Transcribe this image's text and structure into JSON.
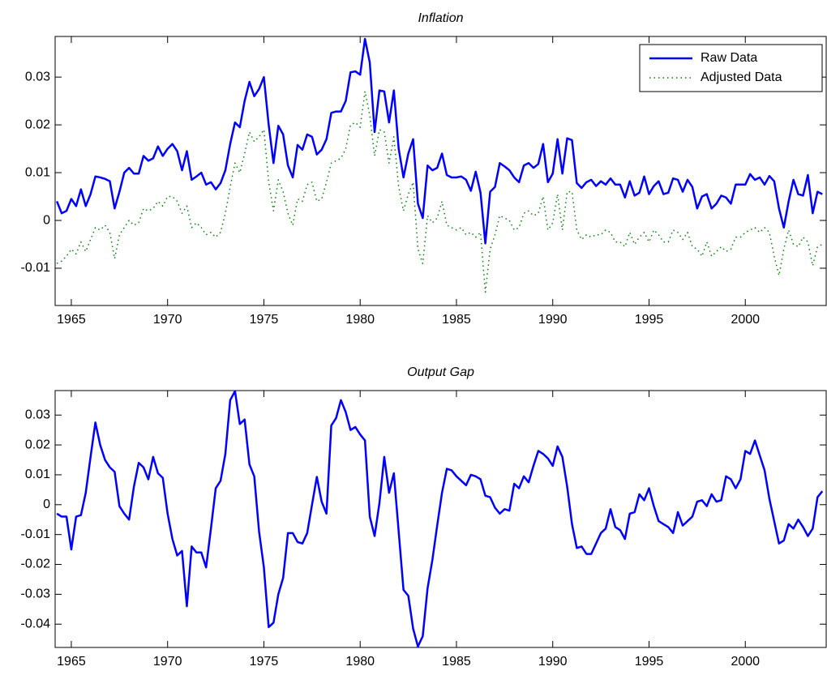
{
  "chart_data": [
    {
      "type": "line",
      "title": "Inflation",
      "legend": "upper right",
      "xlim": [
        1964.16,
        2004.2
      ],
      "xticks": [
        1965,
        1970,
        1975,
        1980,
        1985,
        1990,
        1995,
        2000
      ],
      "ylim": [
        -0.0178,
        0.0385
      ],
      "yticks": [
        -0.01,
        0,
        0.01,
        0.02,
        0.03
      ],
      "x": [
        1964.25,
        1964.5,
        1964.75,
        1965,
        1965.25,
        1965.5,
        1965.75,
        1966,
        1966.25,
        1966.5,
        1966.75,
        1967,
        1967.25,
        1967.5,
        1967.75,
        1968,
        1968.25,
        1968.5,
        1968.75,
        1969,
        1969.25,
        1969.5,
        1969.75,
        1970,
        1970.25,
        1970.5,
        1970.75,
        1971,
        1971.25,
        1971.5,
        1971.75,
        1972,
        1972.25,
        1972.5,
        1972.75,
        1973,
        1973.25,
        1973.5,
        1973.75,
        1974,
        1974.25,
        1974.5,
        1974.75,
        1975,
        1975.25,
        1975.5,
        1975.75,
        1976,
        1976.25,
        1976.5,
        1976.75,
        1977,
        1977.25,
        1977.5,
        1977.75,
        1978,
        1978.25,
        1978.5,
        1978.75,
        1979,
        1979.25,
        1979.5,
        1979.75,
        1980,
        1980.25,
        1980.5,
        1980.75,
        1981,
        1981.25,
        1981.5,
        1981.75,
        1982,
        1982.25,
        1982.5,
        1982.75,
        1983,
        1983.25,
        1983.5,
        1983.75,
        1984,
        1984.25,
        1984.5,
        1984.75,
        1985,
        1985.25,
        1985.5,
        1985.75,
        1986,
        1986.25,
        1986.5,
        1986.75,
        1987,
        1987.25,
        1987.5,
        1987.75,
        1988,
        1988.25,
        1988.5,
        1988.75,
        1989,
        1989.25,
        1989.5,
        1989.75,
        1990,
        1990.25,
        1990.5,
        1990.75,
        1991,
        1991.25,
        1991.5,
        1991.75,
        1992,
        1992.25,
        1992.5,
        1992.75,
        1993,
        1993.25,
        1993.5,
        1993.75,
        1994,
        1994.25,
        1994.5,
        1994.75,
        1995,
        1995.25,
        1995.5,
        1995.75,
        1996,
        1996.25,
        1996.5,
        1996.75,
        1997,
        1997.25,
        1997.5,
        1997.75,
        1998,
        1998.25,
        1998.5,
        1998.75,
        1999,
        1999.25,
        1999.5,
        1999.75,
        2000,
        2000.25,
        2000.5,
        2000.75,
        2001,
        2001.25,
        2001.5,
        2001.75,
        2002,
        2002.25,
        2002.5,
        2002.75,
        2003,
        2003.25,
        2003.5,
        2003.75,
        2004
      ],
      "series": [
        {
          "name": "Raw Data",
          "color": "#0000ff",
          "style": "solid",
          "values": [
            0.004,
            0.0015,
            0.002,
            0.0045,
            0.003,
            0.0065,
            0.003,
            0.0055,
            0.0092,
            0.009,
            0.0087,
            0.0082,
            0.0025,
            0.006,
            0.01,
            0.011,
            0.0098,
            0.0098,
            0.0135,
            0.0125,
            0.013,
            0.0155,
            0.0135,
            0.015,
            0.016,
            0.0145,
            0.0105,
            0.0145,
            0.0085,
            0.0092,
            0.01,
            0.0075,
            0.008,
            0.0065,
            0.0078,
            0.0105,
            0.016,
            0.0205,
            0.0195,
            0.025,
            0.029,
            0.026,
            0.0275,
            0.03,
            0.02,
            0.012,
            0.0198,
            0.018,
            0.0115,
            0.009,
            0.0158,
            0.0148,
            0.018,
            0.0175,
            0.0138,
            0.0148,
            0.017,
            0.0225,
            0.0228,
            0.0228,
            0.025,
            0.031,
            0.0312,
            0.0305,
            0.038,
            0.033,
            0.0185,
            0.0272,
            0.027,
            0.0205,
            0.0272,
            0.015,
            0.009,
            0.014,
            0.017,
            0.0035,
            0.0005,
            0.0115,
            0.0105,
            0.011,
            0.014,
            0.0095,
            0.009,
            0.009,
            0.0092,
            0.0085,
            0.0062,
            0.0102,
            0.0058,
            -0.0048,
            0.006,
            0.007,
            0.012,
            0.0113,
            0.0105,
            0.009,
            0.008,
            0.0115,
            0.012,
            0.011,
            0.0118,
            0.016,
            0.008,
            0.0098,
            0.017,
            0.0098,
            0.0172,
            0.0168,
            0.0078,
            0.0068,
            0.008,
            0.0085,
            0.0072,
            0.0082,
            0.0075,
            0.0088,
            0.0075,
            0.0075,
            0.0048,
            0.0082,
            0.0052,
            0.0058,
            0.0092,
            0.0055,
            0.0072,
            0.0082,
            0.0055,
            0.0058,
            0.0088,
            0.0085,
            0.006,
            0.0085,
            0.007,
            0.0025,
            0.005,
            0.0055,
            0.0025,
            0.0035,
            0.0052,
            0.0048,
            0.0035,
            0.0075,
            0.0075,
            0.0075,
            0.0097,
            0.0085,
            0.009,
            0.0075,
            0.0093,
            0.0082,
            0.0025,
            -0.0015,
            0.004,
            0.0085,
            0.0055,
            0.0052,
            0.0095,
            0.0015,
            0.006,
            0.0055
          ]
        },
        {
          "name": "Adjusted Data",
          "color": "#008000",
          "style": "dotted",
          "values": [
            -0.009,
            -0.0085,
            -0.0075,
            -0.006,
            -0.007,
            -0.0045,
            -0.0065,
            -0.004,
            -0.0015,
            -0.002,
            -0.001,
            -0.0025,
            -0.008,
            -0.003,
            -0.0015,
            0,
            -0.001,
            -0.0005,
            0.0025,
            0.002,
            0.0025,
            0.004,
            0.003,
            0.005,
            0.005,
            0.004,
            0.0015,
            0.003,
            -0.0015,
            -0.0005,
            -0.0015,
            -0.003,
            -0.0025,
            -0.0035,
            -0.0025,
            0.0015,
            0.007,
            0.012,
            0.01,
            0.014,
            0.0185,
            0.0165,
            0.0175,
            0.019,
            0.008,
            0.002,
            0.0085,
            0.006,
            0.0015,
            -0.001,
            0.0045,
            0.004,
            0.0075,
            0.008,
            0.004,
            0.0045,
            0.008,
            0.012,
            0.0125,
            0.013,
            0.015,
            0.02,
            0.0205,
            0.0195,
            0.027,
            0.022,
            0.0135,
            0.019,
            0.0185,
            0.012,
            0.0175,
            0.007,
            0.002,
            0.0055,
            0.008,
            -0.006,
            -0.009,
            0.001,
            -0.0005,
            0.0005,
            0.004,
            -0.001,
            -0.0015,
            -0.002,
            -0.0015,
            -0.003,
            -0.0025,
            -0.0035,
            -0.0025,
            -0.015,
            -0.006,
            -0.003,
            0.001,
            0.0005,
            0,
            -0.002,
            -0.0015,
            0.0015,
            0.002,
            0.001,
            0.0015,
            0.005,
            -0.002,
            -0.0005,
            0.0055,
            -0.002,
            0.006,
            0.006,
            -0.002,
            -0.004,
            -0.003,
            -0.0035,
            -0.003,
            -0.003,
            -0.002,
            -0.0025,
            -0.0045,
            -0.0045,
            -0.0055,
            -0.0025,
            -0.005,
            -0.0035,
            -0.0025,
            -0.0045,
            -0.002,
            -0.003,
            -0.0045,
            -0.0045,
            -0.002,
            -0.0025,
            -0.004,
            -0.0025,
            -0.0055,
            -0.006,
            -0.0075,
            -0.0045,
            -0.0075,
            -0.0065,
            -0.0055,
            -0.0065,
            -0.006,
            -0.0035,
            -0.0035,
            -0.0025,
            -0.002,
            -0.0015,
            -0.0025,
            -0.0015,
            -0.0025,
            -0.0075,
            -0.0115,
            -0.006,
            -0.002,
            -0.005,
            -0.0055,
            -0.0035,
            -0.0045,
            -0.0095,
            -0.0055,
            -0.005
          ]
        }
      ]
    },
    {
      "type": "line",
      "title": "Output Gap",
      "xlim": [
        1964.16,
        2004.2
      ],
      "xticks": [
        1965,
        1970,
        1975,
        1980,
        1985,
        1990,
        1995,
        2000
      ],
      "ylim": [
        -0.0478,
        0.0382
      ],
      "yticks": [
        -0.04,
        -0.03,
        -0.02,
        -0.01,
        0,
        0.01,
        0.02,
        0.03
      ],
      "x": [
        1964.25,
        1964.5,
        1964.75,
        1965,
        1965.25,
        1965.5,
        1965.75,
        1966,
        1966.25,
        1966.5,
        1966.75,
        1967,
        1967.25,
        1967.5,
        1967.75,
        1968,
        1968.25,
        1968.5,
        1968.75,
        1969,
        1969.25,
        1969.5,
        1969.75,
        1970,
        1970.25,
        1970.5,
        1970.75,
        1971,
        1971.25,
        1971.5,
        1971.75,
        1972,
        1972.25,
        1972.5,
        1972.75,
        1973,
        1973.25,
        1973.5,
        1973.75,
        1974,
        1974.25,
        1974.5,
        1974.75,
        1975,
        1975.25,
        1975.5,
        1975.75,
        1976,
        1976.25,
        1976.5,
        1976.75,
        1977,
        1977.25,
        1977.5,
        1977.75,
        1978,
        1978.25,
        1978.5,
        1978.75,
        1979,
        1979.25,
        1979.5,
        1979.75,
        1980,
        1980.25,
        1980.5,
        1980.75,
        1981,
        1981.25,
        1981.5,
        1981.75,
        1982,
        1982.25,
        1982.5,
        1982.75,
        1983,
        1983.25,
        1983.5,
        1983.75,
        1984,
        1984.25,
        1984.5,
        1984.75,
        1985,
        1985.25,
        1985.5,
        1985.75,
        1986,
        1986.25,
        1986.5,
        1986.75,
        1987,
        1987.25,
        1987.5,
        1987.75,
        1988,
        1988.25,
        1988.5,
        1988.75,
        1989,
        1989.25,
        1989.5,
        1989.75,
        1990,
        1990.25,
        1990.5,
        1990.75,
        1991,
        1991.25,
        1991.5,
        1991.75,
        1992,
        1992.25,
        1992.5,
        1992.75,
        1993,
        1993.25,
        1993.5,
        1993.75,
        1994,
        1994.25,
        1994.5,
        1994.75,
        1995,
        1995.25,
        1995.5,
        1995.75,
        1996,
        1996.25,
        1996.5,
        1996.75,
        1997,
        1997.25,
        1997.5,
        1997.75,
        1998,
        1998.25,
        1998.5,
        1998.75,
        1999,
        1999.25,
        1999.5,
        1999.75,
        2000,
        2000.25,
        2000.5,
        2000.75,
        2001,
        2001.25,
        2001.5,
        2001.75,
        2002,
        2002.25,
        2002.5,
        2002.75,
        2003,
        2003.25,
        2003.5,
        2003.75,
        2004
      ],
      "series": [
        {
          "color": "#0000ff",
          "style": "solid",
          "values": [
            -0.003,
            -0.004,
            -0.004,
            -0.015,
            -0.004,
            -0.0035,
            0.004,
            0.016,
            0.0275,
            0.02,
            0.015,
            0.0125,
            0.011,
            -0.0005,
            -0.003,
            -0.005,
            0.006,
            0.014,
            0.0125,
            0.0085,
            0.016,
            0.0105,
            0.009,
            -0.003,
            -0.0115,
            -0.017,
            -0.0155,
            -0.034,
            -0.014,
            -0.016,
            -0.016,
            -0.021,
            -0.008,
            0.0055,
            0.008,
            0.017,
            0.035,
            0.038,
            0.027,
            0.0285,
            0.0135,
            0.0095,
            -0.009,
            -0.021,
            -0.041,
            -0.0395,
            -0.03,
            -0.0245,
            -0.0095,
            -0.0095,
            -0.0125,
            -0.013,
            -0.0095,
            0,
            0.0093,
            0.001,
            -0.003,
            0.0265,
            0.029,
            0.035,
            0.031,
            0.025,
            0.026,
            0.0235,
            0.0215,
            -0.004,
            -0.0105,
            0.0005,
            0.016,
            0.004,
            0.0105,
            -0.009,
            -0.0285,
            -0.0305,
            -0.0415,
            -0.0475,
            -0.044,
            -0.028,
            -0.0185,
            -0.007,
            0.004,
            0.012,
            0.0115,
            0.0095,
            0.008,
            0.0065,
            0.01,
            0.0095,
            0.0085,
            0.003,
            0.0025,
            -0.001,
            -0.003,
            -0.0015,
            -0.002,
            0.007,
            0.0055,
            0.0095,
            0.0075,
            0.013,
            0.018,
            0.017,
            0.0155,
            0.013,
            0.0195,
            0.016,
            0.006,
            -0.0065,
            -0.0145,
            -0.014,
            -0.0165,
            -0.0165,
            -0.013,
            -0.0095,
            -0.008,
            -0.0015,
            -0.0075,
            -0.0085,
            -0.0115,
            -0.003,
            -0.0025,
            0.0035,
            0.0015,
            0.0055,
            -0.0005,
            -0.0055,
            -0.0065,
            -0.0075,
            -0.0095,
            -0.0025,
            -0.007,
            -0.0055,
            -0.004,
            0.001,
            0.0015,
            -0.0005,
            0.0035,
            0.001,
            0.0015,
            0.0095,
            0.0085,
            0.0055,
            0.0085,
            0.018,
            0.017,
            0.0215,
            0.0165,
            0.0115,
            0.002,
            -0.0055,
            -0.013,
            -0.012,
            -0.0065,
            -0.008,
            -0.005,
            -0.0075,
            -0.0105,
            -0.008,
            0.0025,
            0.0045
          ]
        }
      ]
    }
  ]
}
